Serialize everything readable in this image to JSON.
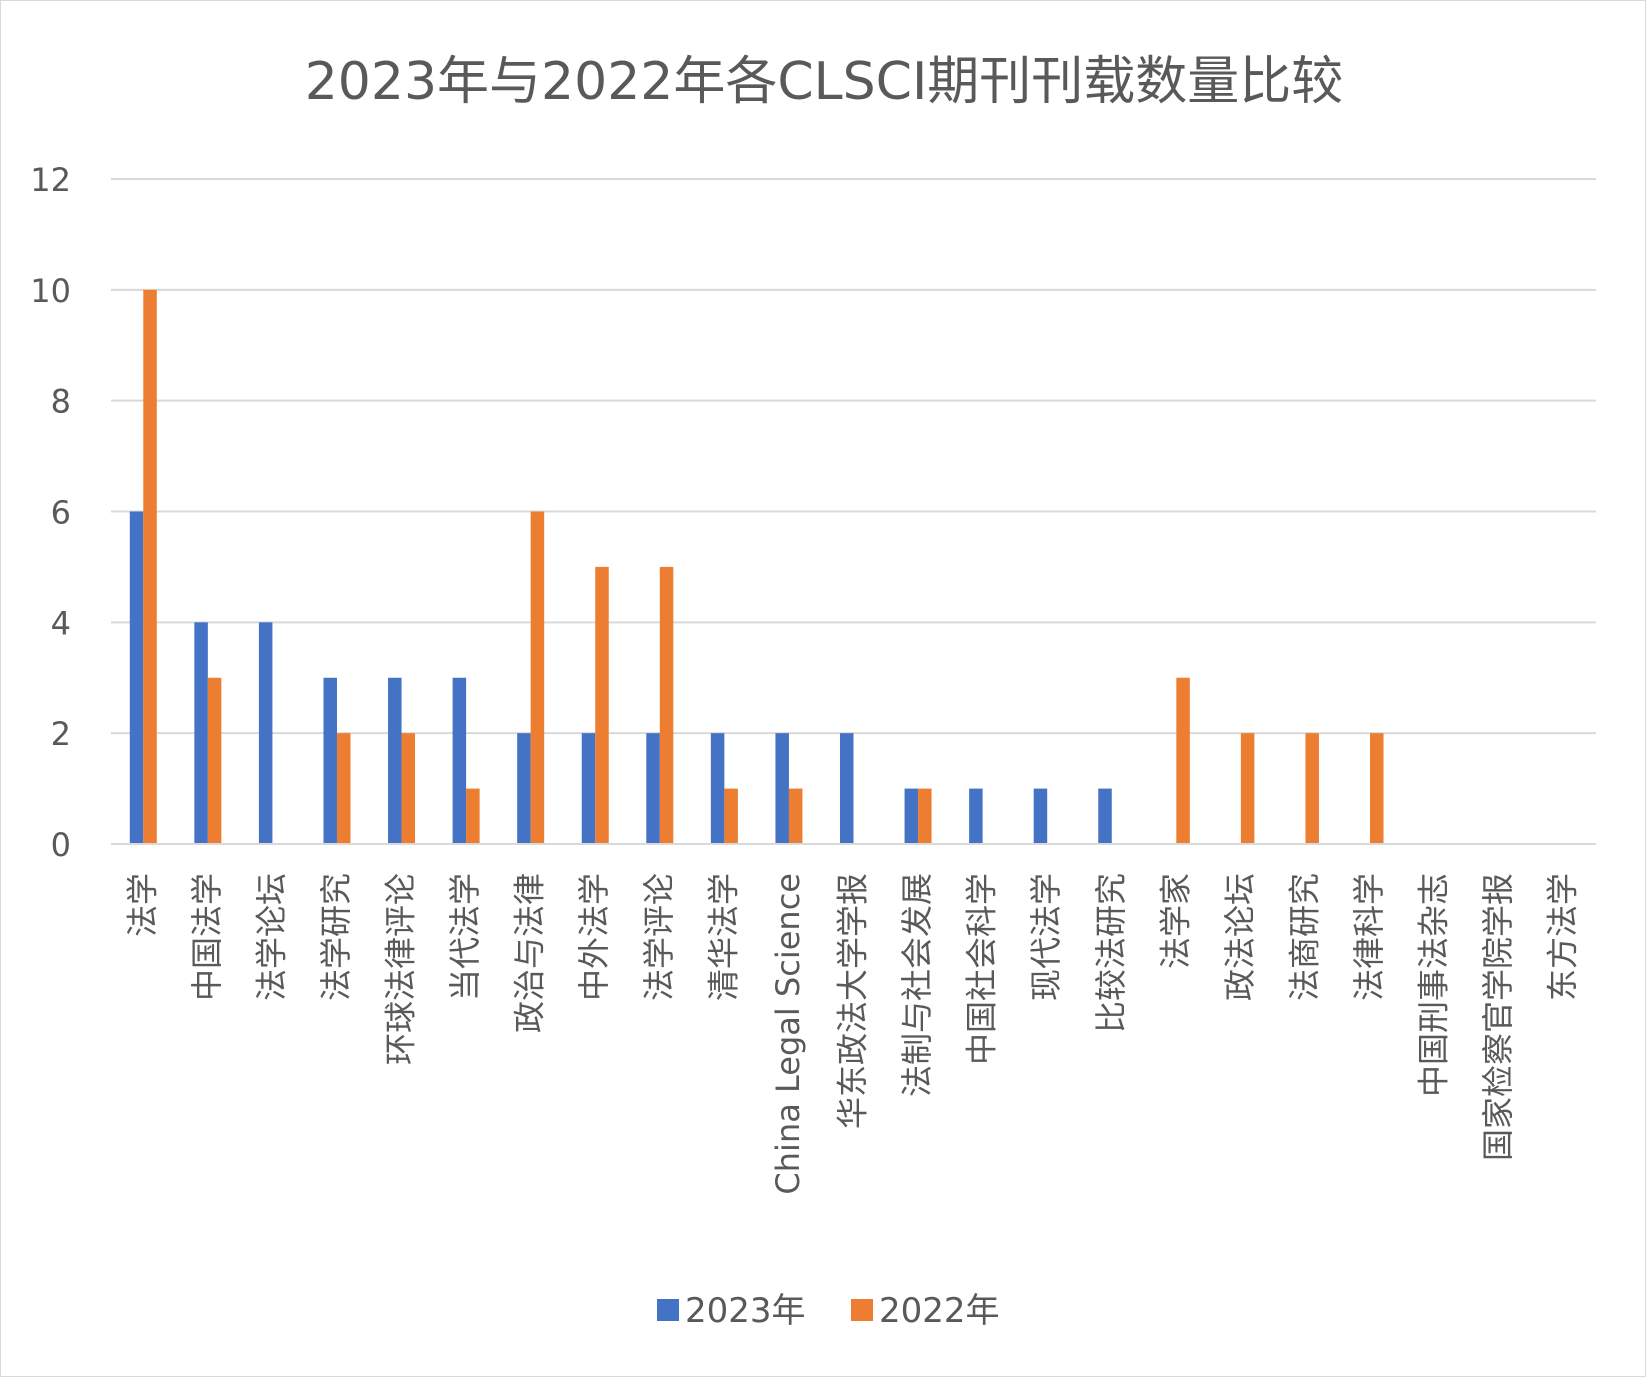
{
  "chart_data": {
    "type": "bar",
    "title": "2023年与2022年各CLSCI期刊刊载数量比较",
    "xlabel": "",
    "ylabel": "",
    "ylim": [
      0,
      12
    ],
    "yticks": [
      0,
      2,
      4,
      6,
      8,
      10,
      12
    ],
    "grid": true,
    "legend_position": "bottom",
    "categories": [
      "法学",
      "中国法学",
      "法学论坛",
      "法学研究",
      "环球法律评论",
      "当代法学",
      "政治与法律",
      "中外法学",
      "法学评论",
      "清华法学",
      "China Legal Science",
      "华东政法大学学报",
      "法制与社会发展",
      "中国社会科学",
      "现代法学",
      "比较法研究",
      "法学家",
      "政法论坛",
      "法商研究",
      "法律科学",
      "中国刑事法杂志",
      "国家检察官学院学报",
      "东方法学"
    ],
    "series": [
      {
        "name": "2023年",
        "color": "#4472c4",
        "values": [
          6,
          4,
          4,
          3,
          3,
          3,
          2,
          2,
          2,
          2,
          2,
          2,
          1,
          1,
          1,
          1,
          0,
          0,
          0,
          0,
          0,
          0,
          0
        ]
      },
      {
        "name": "2022年",
        "color": "#ed7d31",
        "values": [
          10,
          3,
          0,
          2,
          2,
          1,
          6,
          5,
          5,
          1,
          1,
          0,
          1,
          0,
          0,
          0,
          3,
          2,
          2,
          2,
          0,
          0,
          0
        ]
      }
    ]
  }
}
